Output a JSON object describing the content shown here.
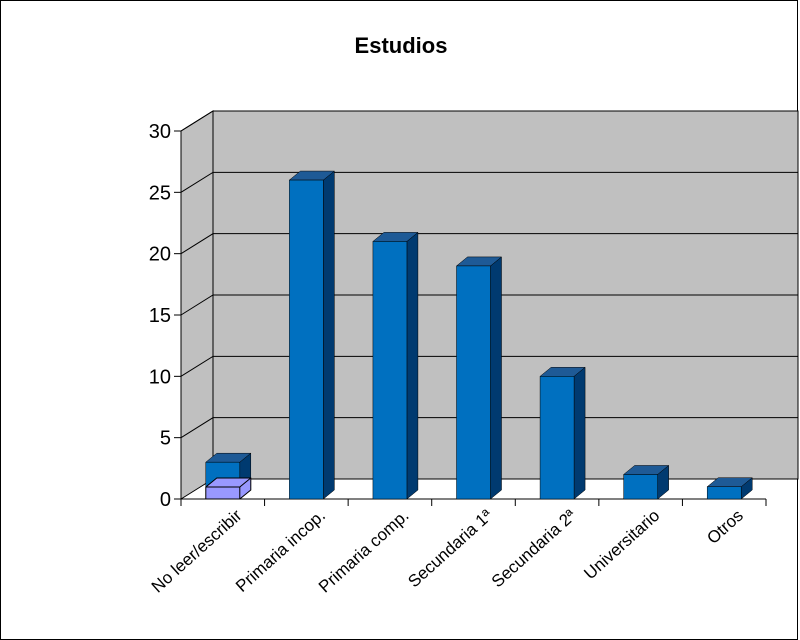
{
  "chart_data": {
    "type": "bar",
    "title": "Estudios",
    "xlabel": "",
    "ylabel": "",
    "categories": [
      "No leer/escribir",
      "Primaria incop.",
      "Primaria comp.",
      "Secundaria 1ª",
      "Secundaria 2ª",
      "Universitario",
      "Otros"
    ],
    "values": [
      3,
      26,
      21,
      19,
      10,
      2,
      1
    ],
    "ylim": [
      0,
      30
    ],
    "yticks": [
      0,
      5,
      10,
      15,
      20,
      25,
      30
    ],
    "grid": true,
    "legend": "none",
    "colors": {
      "bar_front": "#0070C0",
      "bar_side": "#003A70",
      "bar_top": "#1E5A96",
      "wall": "#C0C0C0",
      "floor_marker": "#9999FF"
    }
  }
}
